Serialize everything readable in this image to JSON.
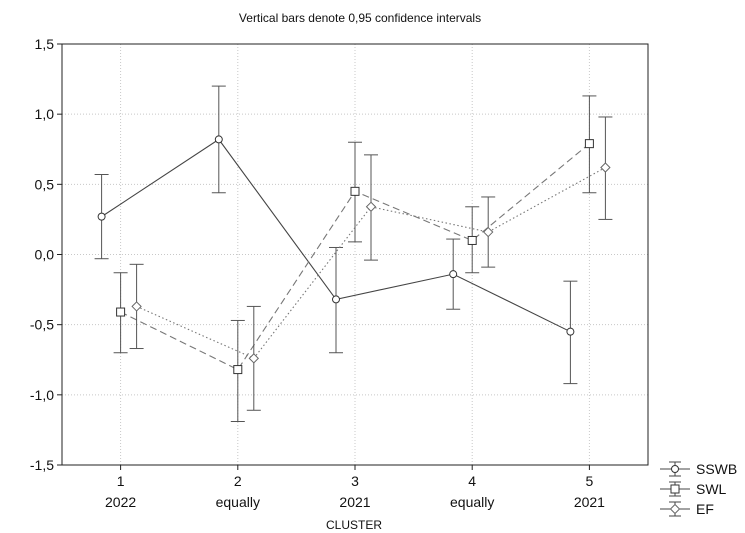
{
  "chart_data": {
    "type": "line",
    "title": "Vertical bars denote 0,95 confidence intervals",
    "xlabel": "CLUSTER",
    "ylabel": "",
    "categories": [
      "1",
      "2",
      "3",
      "4",
      "5"
    ],
    "category_sublabels": [
      "2022",
      "equally",
      "2021",
      "equally",
      "2021"
    ],
    "ylim": [
      -1.5,
      1.5
    ],
    "yticks": [
      -1.5,
      -1.0,
      -0.5,
      0.0,
      0.5,
      1.0,
      1.5
    ],
    "ytick_labels": [
      "-1,5",
      "-1,0",
      "-0,5",
      "0,0",
      "0,5",
      "1,0",
      "1,5"
    ],
    "grid": true,
    "legend_position": "bottom-right",
    "series": [
      {
        "name": "SSWB",
        "marker": "circle",
        "line_style": "solid",
        "values": [
          0.27,
          0.82,
          -0.32,
          -0.14,
          -0.55
        ],
        "ci_low": [
          -0.03,
          0.44,
          -0.7,
          -0.39,
          -0.92
        ],
        "ci_high": [
          0.57,
          1.2,
          0.05,
          0.11,
          -0.19
        ]
      },
      {
        "name": "SWL",
        "marker": "square",
        "line_style": "dashed",
        "values": [
          -0.41,
          -0.82,
          0.45,
          0.1,
          0.79
        ],
        "ci_low": [
          -0.7,
          -1.19,
          0.09,
          -0.13,
          0.44
        ],
        "ci_high": [
          -0.13,
          -0.47,
          0.8,
          0.34,
          1.13
        ]
      },
      {
        "name": "EF",
        "marker": "diamond",
        "line_style": "dotted",
        "values": [
          -0.37,
          -0.74,
          0.34,
          0.16,
          0.62
        ],
        "ci_low": [
          -0.67,
          -1.11,
          -0.04,
          -0.09,
          0.25
        ],
        "ci_high": [
          -0.07,
          -0.37,
          0.71,
          0.41,
          0.98
        ]
      }
    ]
  }
}
